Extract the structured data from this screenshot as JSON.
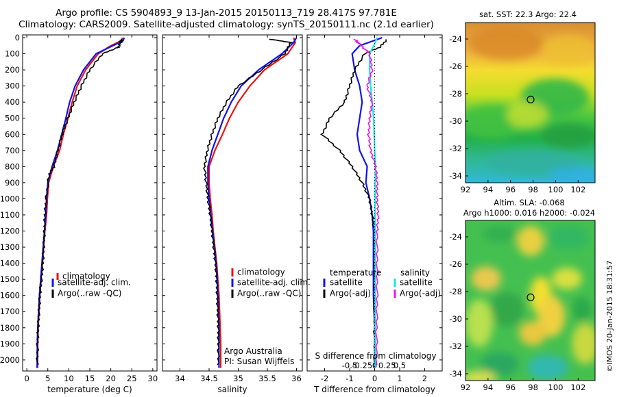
{
  "titles": {
    "line1": "Argo profile: CS 5904893_9 13-Jan-2015 20150113_719 28.417S 97.781E",
    "line2": "Climatology: CARS2009. Satellite-adjusted climatology: synTS_20150111.nc (2.1d earlier)"
  },
  "colors": {
    "climatology": "#ee1111",
    "satellite": "#1111ee",
    "argo": "#000000",
    "sat_salinity": "#11e6e6",
    "argo_salinity_diff": "#ee11ee"
  },
  "chart_data": [
    {
      "type": "line",
      "xlabel": "temperature (deg C)",
      "xlim": [
        -1,
        31
      ],
      "ylim": [
        0,
        2060
      ],
      "xticks": [
        "0",
        "5",
        "10",
        "15",
        "20",
        "25",
        "30"
      ],
      "xtick_values": [
        0,
        5,
        10,
        15,
        20,
        25,
        30
      ],
      "yticks": [
        "0",
        "100",
        "200",
        "300",
        "400",
        "500",
        "600",
        "700",
        "800",
        "900",
        "1000",
        "1100",
        "1200",
        "1300",
        "1400",
        "1500",
        "1600",
        "1700",
        "1800",
        "1900",
        "2000"
      ],
      "ytick_values": [
        0,
        100,
        200,
        300,
        400,
        500,
        600,
        700,
        800,
        900,
        1000,
        1100,
        1200,
        1300,
        1400,
        1500,
        1600,
        1700,
        1800,
        1900,
        2000
      ],
      "legend": [
        "climatology",
        "satellite-adj. clim.",
        "Argo(..raw -QC)"
      ],
      "series": [
        {
          "name": "climatology",
          "x": [
            22.8,
            22.5,
            20,
            17,
            14,
            12,
            10.8,
            9.8,
            8.7,
            7.8,
            6.3,
            5.2,
            4.9,
            4.7,
            4.3,
            4.0,
            3.7,
            3.4,
            3.1,
            2.9,
            2.7,
            2.6,
            2.55
          ],
          "y": [
            0,
            20,
            50,
            100,
            200,
            300,
            400,
            500,
            600,
            700,
            800,
            900,
            1000,
            1100,
            1200,
            1300,
            1400,
            1500,
            1600,
            1700,
            1800,
            1900,
            2050
          ]
        },
        {
          "name": "satellite-adj. clim.",
          "x": [
            23.2,
            22.9,
            20.5,
            16.5,
            13.5,
            11.5,
            10.2,
            9.3,
            8.3,
            7.3,
            6.0,
            5.0,
            4.7,
            4.5,
            4.2,
            3.9,
            3.6,
            3.3,
            3.0,
            2.8,
            2.6,
            2.5,
            2.45
          ],
          "y": [
            0,
            20,
            50,
            100,
            200,
            300,
            400,
            500,
            600,
            700,
            800,
            900,
            1000,
            1100,
            1200,
            1300,
            1400,
            1500,
            1600,
            1700,
            1800,
            1900,
            2050
          ]
        },
        {
          "name": "Argo(..raw -QC)",
          "x": [
            22.6,
            22.3,
            21.8,
            18,
            15,
            13,
            11.3,
            9.8,
            8.4,
            7.4,
            6.5,
            5.3,
            4.6,
            4.3,
            4.2,
            4.0,
            3.8,
            3.5,
            3.1,
            2.9,
            2.7,
            2.55,
            2.5
          ],
          "y": [
            10,
            30,
            60,
            100,
            200,
            300,
            400,
            500,
            600,
            700,
            800,
            850,
            1000,
            1100,
            1200,
            1300,
            1400,
            1500,
            1600,
            1700,
            1800,
            1900,
            2030
          ]
        }
      ]
    },
    {
      "type": "line",
      "xlabel": "salinity",
      "xlim": [
        33.7,
        36.1
      ],
      "ylim": [
        0,
        2060
      ],
      "xticks": [
        "34",
        "34.5",
        "35",
        "35.5",
        "36"
      ],
      "xtick_values": [
        34,
        34.5,
        35,
        35.5,
        36
      ],
      "legend": [
        "climatology",
        "satellite-adj. clim.",
        "Argo(..raw -QC)"
      ],
      "notes": [
        "Argo Australia",
        "PI: Susan Wijffels"
      ],
      "series": [
        {
          "name": "climatology",
          "x": [
            35.95,
            35.98,
            35.85,
            35.45,
            35.2,
            35.0,
            34.85,
            34.73,
            34.6,
            34.5,
            34.5,
            34.52,
            34.55,
            34.57,
            34.6,
            34.63,
            34.65,
            34.67,
            34.68,
            34.69,
            34.7,
            34.7
          ],
          "y": [
            0,
            30,
            100,
            200,
            300,
            400,
            500,
            600,
            700,
            800,
            900,
            1000,
            1100,
            1200,
            1300,
            1400,
            1500,
            1600,
            1700,
            1800,
            1900,
            2050
          ]
        },
        {
          "name": "satellite-adj. clim.",
          "x": [
            36.0,
            35.95,
            35.75,
            35.35,
            35.05,
            34.88,
            34.75,
            34.65,
            34.55,
            34.48,
            34.48,
            34.5,
            34.53,
            34.56,
            34.59,
            34.62,
            34.64,
            34.65,
            34.66,
            34.67,
            34.67,
            34.67
          ],
          "y": [
            0,
            30,
            100,
            200,
            300,
            400,
            500,
            600,
            700,
            800,
            900,
            1000,
            1100,
            1200,
            1300,
            1400,
            1500,
            1600,
            1700,
            1800,
            1900,
            2050
          ]
        },
        {
          "name": "Argo(..raw -QC)",
          "x": [
            35.55,
            35.9,
            35.8,
            35.4,
            35.0,
            34.8,
            34.65,
            34.55,
            34.47,
            34.42,
            34.45,
            34.48,
            34.52,
            34.55,
            34.58,
            34.61,
            34.63,
            34.64,
            34.65,
            34.66,
            34.66,
            34.66
          ],
          "y": [
            10,
            30,
            100,
            200,
            300,
            400,
            500,
            600,
            700,
            800,
            900,
            1000,
            1100,
            1200,
            1300,
            1400,
            1500,
            1600,
            1700,
            1800,
            1900,
            2030
          ]
        }
      ]
    },
    {
      "type": "line",
      "xlabel": "T difference from climatology",
      "xlabel_top": "S difference from climatology",
      "xlim": [
        -2.7,
        2.7
      ],
      "ylim": [
        0,
        2060
      ],
      "xticks": [
        "-2",
        "-1",
        "0",
        "1",
        "2"
      ],
      "xtick_values": [
        -2,
        -1,
        0,
        1,
        2
      ],
      "xticks_top": [
        "-0.5",
        "-0.25",
        "0",
        "0.25",
        "0.5"
      ],
      "xtick_top_values": [
        -0.5,
        -0.25,
        0,
        0.25,
        0.5
      ],
      "legend_temperature_title": "temperature",
      "legend_salinity_title": "salinity",
      "legend_temperature": [
        "satellite",
        "Argo(-adj)"
      ],
      "legend_salinity": [
        "satellite",
        "Argo(-adj)"
      ],
      "series": [
        {
          "name": "satellite",
          "variable": "temperature",
          "x": [
            0.3,
            -0.6,
            -0.9,
            -0.8,
            -0.6,
            -0.5,
            -0.6,
            -0.7,
            -0.6,
            -0.3,
            -0.35,
            -0.2,
            -0.1,
            -0.05,
            -0.05,
            -0.05,
            0,
            0
          ],
          "y": [
            0,
            50,
            100,
            200,
            300,
            400,
            500,
            600,
            700,
            800,
            900,
            1000,
            1100,
            1200,
            1400,
            1600,
            1800,
            2050
          ]
        },
        {
          "name": "Argo(-adj)",
          "variable": "temperature",
          "x": [
            0.5,
            0.2,
            -0.4,
            -0.8,
            -1.0,
            -1.2,
            -1.8,
            -2.1,
            -1.4,
            -0.9,
            -0.5,
            -0.2,
            -0.1,
            0,
            0,
            0,
            0,
            0
          ],
          "y": [
            10,
            60,
            100,
            200,
            300,
            400,
            500,
            600,
            700,
            800,
            900,
            1000,
            1100,
            1200,
            1400,
            1600,
            1800,
            2030
          ]
        },
        {
          "name": "satellite",
          "variable": "salinity",
          "x": [
            0.05,
            -0.02,
            -0.1,
            -0.1,
            -0.08,
            -0.05,
            -0.02,
            -0.01,
            0,
            0.02,
            0.01,
            0.01,
            0.01,
            0.01,
            0.01,
            0.01,
            0.01
          ],
          "y": [
            0,
            50,
            100,
            200,
            300,
            400,
            500,
            600,
            700,
            800,
            900,
            1000,
            1200,
            1400,
            1600,
            1800,
            2050
          ]
        },
        {
          "name": "Argo(-adj)",
          "variable": "salinity",
          "x": [
            -0.4,
            -0.3,
            -0.1,
            -0.05,
            -0.15,
            -0.05,
            -0.1,
            -0.12,
            -0.08,
            0.02,
            0.05,
            0.05,
            0.07,
            0.05,
            0.05,
            0.05,
            0.04,
            0.04
          ],
          "y": [
            10,
            40,
            100,
            200,
            300,
            400,
            500,
            600,
            700,
            800,
            900,
            1000,
            1100,
            1200,
            1400,
            1600,
            1800,
            2030
          ]
        }
      ]
    },
    {
      "type": "heatmap",
      "title": "sat. SST: 22.3  Argo: 22.4",
      "xlim": [
        92,
        103.5
      ],
      "ylim": [
        -34.5,
        -22.8
      ],
      "xticks": [
        "92",
        "94",
        "96",
        "98",
        "100",
        "102"
      ],
      "xtick_values": [
        92,
        94,
        96,
        98,
        100,
        102
      ],
      "yticks": [
        "-24",
        "-26",
        "-28",
        "-30",
        "-32",
        "-34"
      ],
      "ytick_values": [
        -24,
        -26,
        -28,
        -30,
        -32,
        -34
      ],
      "marker": {
        "lon": 97.78,
        "lat": -28.42
      }
    },
    {
      "type": "heatmap",
      "title": "Altim. SLA: -0.068",
      "subtitle": "Argo h1000: 0.016 h2000: -0.024",
      "xlim": [
        92,
        103.5
      ],
      "ylim": [
        -34.5,
        -22.8
      ],
      "xticks": [
        "92",
        "94",
        "96",
        "98",
        "100",
        "102"
      ],
      "xtick_values": [
        92,
        94,
        96,
        98,
        100,
        102
      ],
      "yticks": [
        "-24",
        "-26",
        "-28",
        "-30",
        "-32",
        "-34"
      ],
      "ytick_values": [
        -24,
        -26,
        -28,
        -30,
        -32,
        -34
      ],
      "marker": {
        "lon": 97.78,
        "lat": -28.42
      }
    }
  ],
  "credit": "©IMOS 20-Jan-2015 18:31:57"
}
